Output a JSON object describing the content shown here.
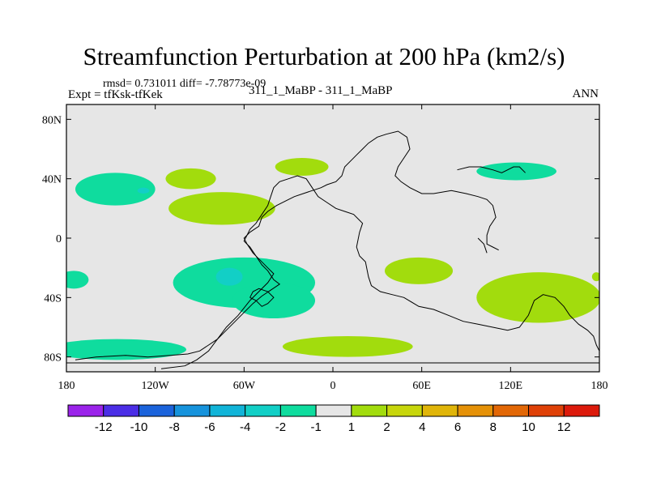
{
  "header": {
    "title": "Streamfunction Perturbation at 200 hPa (km2/s)",
    "stats": "rmsd= 0.731011 diff= -7.78773e-09",
    "expt": "Expt = tfKsk-tfKek",
    "case": "311_1_MaBP - 311_1_MaBP",
    "season": "ANN"
  },
  "chart_data": {
    "type": "heatmap",
    "title": "Streamfunction Perturbation at 200 hPa (km2/s)",
    "xlabel": "",
    "ylabel": "",
    "xlim": [
      -180,
      180
    ],
    "ylim": [
      -90,
      90
    ],
    "x_ticks": [
      {
        "value": -180,
        "label": "180"
      },
      {
        "value": -120,
        "label": "120W"
      },
      {
        "value": -60,
        "label": "60W"
      },
      {
        "value": 0,
        "label": "0"
      },
      {
        "value": 60,
        "label": "60E"
      },
      {
        "value": 120,
        "label": "120E"
      },
      {
        "value": 180,
        "label": "180"
      }
    ],
    "y_ticks": [
      {
        "value": 80,
        "label": "80N"
      },
      {
        "value": 40,
        "label": "40N"
      },
      {
        "value": 0,
        "label": "0"
      },
      {
        "value": -40,
        "label": "40S"
      },
      {
        "value": -80,
        "label": "80S"
      }
    ],
    "background_color": "#e6e6e6",
    "colorbar": {
      "colors": [
        "#9b23ea",
        "#4b2ee6",
        "#1b63db",
        "#1693dc",
        "#11b4d8",
        "#12cfc6",
        "#0fdc9e",
        "#e6e6e6",
        "#a2dc0d",
        "#c7d60b",
        "#e0b509",
        "#e59107",
        "#e26706",
        "#df4107",
        "#dc1a0b"
      ],
      "labels": [
        "-12",
        "-10",
        "-8",
        "-6",
        "-4",
        "-2",
        "-1",
        "1",
        "2",
        "4",
        "6",
        "8",
        "10",
        "12"
      ]
    },
    "regions": [
      {
        "level": "-1 to -2",
        "color": "#0fdc9e",
        "center": [
          -147,
          33
        ],
        "lon_radius": 27,
        "lat_radius": 11
      },
      {
        "level": "-2 to -4",
        "color": "#12cfc6",
        "center": [
          -128,
          32
        ],
        "lon_radius": 4,
        "lat_radius": 2
      },
      {
        "level": "1 to 2",
        "color": "#a2dc0d",
        "center": [
          -96,
          40
        ],
        "lon_radius": 17,
        "lat_radius": 7
      },
      {
        "level": "1 to 2",
        "color": "#a2dc0d",
        "center": [
          -75,
          20
        ],
        "lon_radius": 36,
        "lat_radius": 11
      },
      {
        "level": "1 to 2",
        "color": "#a2dc0d",
        "center": [
          -21,
          48
        ],
        "lon_radius": 18,
        "lat_radius": 6
      },
      {
        "level": "-1 to -2",
        "color": "#0fdc9e",
        "center": [
          124,
          45
        ],
        "lon_radius": 27,
        "lat_radius": 6
      },
      {
        "level": "-1 to -2",
        "color": "#0fdc9e",
        "center": [
          -175,
          -28
        ],
        "lon_radius": 10,
        "lat_radius": 6
      },
      {
        "level": "-1 to -2",
        "color": "#0fdc9e",
        "center": [
          -60,
          -30
        ],
        "lon_radius": 48,
        "lat_radius": 17
      },
      {
        "level": "-1 to -2",
        "color": "#0fdc9e",
        "center": [
          -40,
          -42
        ],
        "lon_radius": 28,
        "lat_radius": 12
      },
      {
        "level": "-2 to -4",
        "color": "#12cfc6",
        "center": [
          -70,
          -26
        ],
        "lon_radius": 9,
        "lat_radius": 6
      },
      {
        "level": "1 to 2",
        "color": "#a2dc0d",
        "center": [
          58,
          -22
        ],
        "lon_radius": 23,
        "lat_radius": 9
      },
      {
        "level": "1 to 2",
        "color": "#a2dc0d",
        "center": [
          139,
          -40
        ],
        "lon_radius": 42,
        "lat_radius": 17
      },
      {
        "level": "1 to 2",
        "color": "#a2dc0d",
        "center": [
          178,
          -26
        ],
        "lon_radius": 3,
        "lat_radius": 3
      },
      {
        "level": "-1 to -2",
        "color": "#0fdc9e",
        "center": [
          -146,
          -75
        ],
        "lon_radius": 47,
        "lat_radius": 7
      },
      {
        "level": "1 to 2",
        "color": "#a2dc0d",
        "center": [
          10,
          -73
        ],
        "lon_radius": 44,
        "lat_radius": 7
      }
    ],
    "continent_outlines": [
      [
        [
          -174,
          -82
        ],
        [
          -160,
          -80
        ],
        [
          -140,
          -79
        ],
        [
          -125,
          -80
        ],
        [
          -110,
          -79
        ],
        [
          -98,
          -78
        ],
        [
          -90,
          -76
        ],
        [
          -84,
          -72
        ],
        [
          -78,
          -68
        ],
        [
          -72,
          -62
        ],
        [
          -66,
          -56
        ],
        [
          -60,
          -50
        ],
        [
          -54,
          -44
        ],
        [
          -48,
          -39
        ],
        [
          -42,
          -35
        ],
        [
          -36,
          -31
        ],
        [
          -40,
          -28
        ],
        [
          -42,
          -25
        ],
        [
          -44,
          -22
        ],
        [
          -48,
          -18
        ],
        [
          -52,
          -12
        ],
        [
          -56,
          -6
        ],
        [
          -60,
          -2
        ],
        [
          -58,
          2
        ],
        [
          -56,
          6
        ],
        [
          -52,
          10
        ],
        [
          -48,
          16
        ],
        [
          -44,
          22
        ],
        [
          -42,
          28
        ],
        [
          -40,
          34
        ],
        [
          -36,
          38
        ],
        [
          -30,
          40
        ],
        [
          -24,
          42
        ],
        [
          -18,
          40
        ],
        [
          -14,
          34
        ],
        [
          -10,
          28
        ],
        [
          -4,
          24
        ],
        [
          2,
          20
        ],
        [
          8,
          18
        ],
        [
          14,
          16
        ],
        [
          18,
          12
        ],
        [
          20,
          10
        ],
        [
          18,
          4
        ],
        [
          16,
          -6
        ],
        [
          18,
          -12
        ],
        [
          22,
          -16
        ],
        [
          24,
          -26
        ],
        [
          26,
          -32
        ],
        [
          32,
          -36
        ],
        [
          40,
          -38
        ],
        [
          48,
          -40
        ],
        [
          58,
          -46
        ],
        [
          68,
          -48
        ],
        [
          78,
          -52
        ],
        [
          88,
          -56
        ],
        [
          98,
          -58
        ],
        [
          108,
          -60
        ],
        [
          118,
          -62
        ],
        [
          126,
          -60
        ],
        [
          132,
          -52
        ],
        [
          136,
          -42
        ],
        [
          142,
          -38
        ],
        [
          150,
          -40
        ],
        [
          156,
          -46
        ],
        [
          160,
          -52
        ],
        [
          166,
          -58
        ],
        [
          172,
          -62
        ],
        [
          176,
          -66
        ],
        [
          178,
          -72
        ],
        [
          180,
          -76
        ]
      ],
      [
        [
          -116,
          -88
        ],
        [
          -100,
          -86
        ],
        [
          -92,
          -82
        ],
        [
          -84,
          -76
        ],
        [
          -78,
          -68
        ],
        [
          -72,
          -60
        ],
        [
          -64,
          -52
        ],
        [
          -56,
          -42
        ],
        [
          -50,
          -36
        ],
        [
          -44,
          -30
        ],
        [
          -40,
          -24
        ],
        [
          -44,
          -20
        ],
        [
          -48,
          -16
        ],
        [
          -54,
          -10
        ],
        [
          -58,
          -4
        ],
        [
          -60,
          0
        ],
        [
          -56,
          4
        ],
        [
          -50,
          8
        ],
        [
          -48,
          14
        ],
        [
          -44,
          18
        ],
        [
          -38,
          22
        ],
        [
          -30,
          26
        ],
        [
          -26,
          28
        ],
        [
          -20,
          30
        ],
        [
          -14,
          32
        ],
        [
          -8,
          34
        ],
        [
          -4,
          36
        ],
        [
          2,
          38
        ],
        [
          6,
          42
        ],
        [
          8,
          48
        ],
        [
          12,
          52
        ],
        [
          16,
          56
        ],
        [
          20,
          60
        ],
        [
          24,
          64
        ],
        [
          30,
          68
        ],
        [
          36,
          70
        ],
        [
          44,
          72
        ],
        [
          50,
          68
        ],
        [
          52,
          60
        ],
        [
          48,
          54
        ],
        [
          44,
          48
        ],
        [
          42,
          42
        ],
        [
          46,
          38
        ],
        [
          52,
          34
        ],
        [
          60,
          30
        ],
        [
          68,
          30
        ],
        [
          80,
          32
        ],
        [
          90,
          30
        ],
        [
          98,
          28
        ],
        [
          104,
          26
        ],
        [
          108,
          22
        ],
        [
          110,
          14
        ],
        [
          106,
          8
        ],
        [
          104,
          2
        ],
        [
          104,
          -4
        ],
        [
          108,
          -6
        ],
        [
          112,
          -8
        ]
      ],
      [
        [
          -56,
          -40
        ],
        [
          -52,
          -42
        ],
        [
          -48,
          -46
        ],
        [
          -44,
          -44
        ],
        [
          -40,
          -40
        ],
        [
          -44,
          -36
        ],
        [
          -50,
          -34
        ],
        [
          -54,
          -36
        ],
        [
          -56,
          -40
        ]
      ],
      [
        [
          84,
          46
        ],
        [
          92,
          48
        ],
        [
          100,
          48
        ],
        [
          108,
          46
        ],
        [
          114,
          44
        ],
        [
          118,
          46
        ],
        [
          122,
          48
        ],
        [
          126,
          48
        ],
        [
          130,
          44
        ]
      ],
      [
        [
          98,
          0
        ],
        [
          102,
          -4
        ],
        [
          104,
          -10
        ]
      ],
      [
        [
          -180,
          -84
        ],
        [
          -140,
          -84
        ],
        [
          -100,
          -84
        ],
        [
          -60,
          -84
        ],
        [
          -20,
          -84
        ],
        [
          20,
          -84
        ],
        [
          60,
          -84
        ],
        [
          100,
          -84
        ],
        [
          140,
          -84
        ],
        [
          180,
          -84
        ]
      ]
    ]
  }
}
